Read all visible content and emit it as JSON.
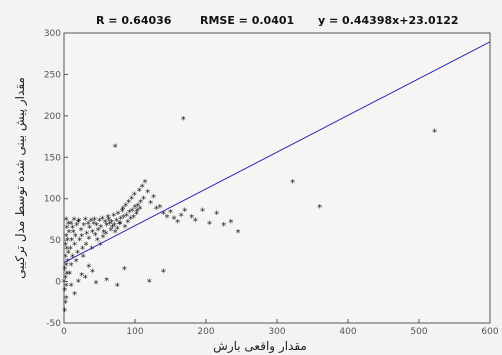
{
  "chart_data": {
    "type": "scatter",
    "stats": {
      "r": "R = 0.64036",
      "rmse": "RMSE = 0.0401",
      "equation": "y = 0.44398x+23.0122"
    },
    "xlabel": "مقدار واقعی بارش",
    "ylabel": "مقدار پیش بینی شده توسط مدل ترکیبی",
    "xlim": [
      0,
      600
    ],
    "ylim": [
      -50,
      300
    ],
    "xticks": [
      0,
      100,
      200,
      300,
      400,
      500,
      600
    ],
    "yticks": [
      -50,
      0,
      50,
      100,
      150,
      200,
      250,
      300
    ],
    "fit_line": {
      "slope": 0.44398,
      "intercept": 23.0122
    },
    "grid": false,
    "colors": {
      "fit_line": "#2b2bb0",
      "points": "#1a1a1a",
      "axes": "#555555"
    },
    "points": [
      [
        1,
        -35
      ],
      [
        2,
        -25
      ],
      [
        3,
        -20
      ],
      [
        1,
        -10
      ],
      [
        3,
        -5
      ],
      [
        0,
        0
      ],
      [
        2,
        5
      ],
      [
        4,
        10
      ],
      [
        1,
        15
      ],
      [
        3,
        20
      ],
      [
        5,
        25
      ],
      [
        2,
        30
      ],
      [
        6,
        35
      ],
      [
        4,
        40
      ],
      [
        2,
        45
      ],
      [
        5,
        50
      ],
      [
        3,
        55
      ],
      [
        7,
        60
      ],
      [
        4,
        65
      ],
      [
        6,
        70
      ],
      [
        3,
        75
      ],
      [
        8,
        10
      ],
      [
        10,
        20
      ],
      [
        12,
        30
      ],
      [
        9,
        40
      ],
      [
        11,
        50
      ],
      [
        13,
        60
      ],
      [
        10,
        70
      ],
      [
        14,
        75
      ],
      [
        12,
        65
      ],
      [
        15,
        45
      ],
      [
        17,
        25
      ],
      [
        16,
        55
      ],
      [
        18,
        68
      ],
      [
        20,
        72
      ],
      [
        19,
        35
      ],
      [
        22,
        50
      ],
      [
        24,
        62
      ],
      [
        21,
        74
      ],
      [
        26,
        40
      ],
      [
        25,
        55
      ],
      [
        28,
        68
      ],
      [
        30,
        75
      ],
      [
        27,
        30
      ],
      [
        32,
        58
      ],
      [
        34,
        70
      ],
      [
        31,
        45
      ],
      [
        36,
        65
      ],
      [
        38,
        74
      ],
      [
        35,
        52
      ],
      [
        40,
        60
      ],
      [
        42,
        70
      ],
      [
        39,
        40
      ],
      [
        44,
        56
      ],
      [
        46,
        68
      ],
      [
        43,
        75
      ],
      [
        48,
        62
      ],
      [
        50,
        74
      ],
      [
        47,
        50
      ],
      [
        52,
        66
      ],
      [
        54,
        76
      ],
      [
        51,
        45
      ],
      [
        56,
        60
      ],
      [
        58,
        72
      ],
      [
        55,
        54
      ],
      [
        60,
        68
      ],
      [
        62,
        78
      ],
      [
        59,
        58
      ],
      [
        64,
        70
      ],
      [
        66,
        62
      ],
      [
        63,
        75
      ],
      [
        68,
        66
      ],
      [
        70,
        80
      ],
      [
        67,
        72
      ],
      [
        72,
        60
      ],
      [
        74,
        74
      ],
      [
        71,
        68
      ],
      [
        76,
        82
      ],
      [
        78,
        70
      ],
      [
        75,
        64
      ],
      [
        80,
        76
      ],
      [
        82,
        85
      ],
      [
        79,
        70
      ],
      [
        84,
        78
      ],
      [
        86,
        66
      ],
      [
        83,
        88
      ],
      [
        88,
        80
      ],
      [
        90,
        72
      ],
      [
        87,
        92
      ],
      [
        92,
        84
      ],
      [
        94,
        76
      ],
      [
        91,
        96
      ],
      [
        96,
        86
      ],
      [
        98,
        78
      ],
      [
        95,
        100
      ],
      [
        100,
        90
      ],
      [
        102,
        82
      ],
      [
        99,
        105
      ],
      [
        104,
        92
      ],
      [
        106,
        110
      ],
      [
        103,
        86
      ],
      [
        108,
        96
      ],
      [
        110,
        115
      ],
      [
        107,
        88
      ],
      [
        112,
        100
      ],
      [
        114,
        120
      ],
      [
        118,
        108
      ],
      [
        122,
        95
      ],
      [
        126,
        102
      ],
      [
        130,
        88
      ],
      [
        135,
        90
      ],
      [
        140,
        82
      ],
      [
        145,
        78
      ],
      [
        150,
        84
      ],
      [
        155,
        76
      ],
      [
        160,
        72
      ],
      [
        165,
        80
      ],
      [
        170,
        86
      ],
      [
        180,
        78
      ],
      [
        185,
        74
      ],
      [
        195,
        86
      ],
      [
        205,
        70
      ],
      [
        215,
        82
      ],
      [
        225,
        68
      ],
      [
        235,
        72
      ],
      [
        245,
        60
      ],
      [
        10,
        -5
      ],
      [
        20,
        0
      ],
      [
        30,
        5
      ],
      [
        15,
        -15
      ],
      [
        25,
        8
      ],
      [
        40,
        12
      ],
      [
        45,
        -2
      ],
      [
        60,
        2
      ],
      [
        35,
        18
      ],
      [
        72,
        163
      ],
      [
        168,
        196
      ],
      [
        322,
        120
      ],
      [
        360,
        90
      ],
      [
        522,
        181
      ],
      [
        120,
        0
      ],
      [
        140,
        12
      ],
      [
        75,
        -5
      ],
      [
        85,
        15
      ]
    ]
  }
}
